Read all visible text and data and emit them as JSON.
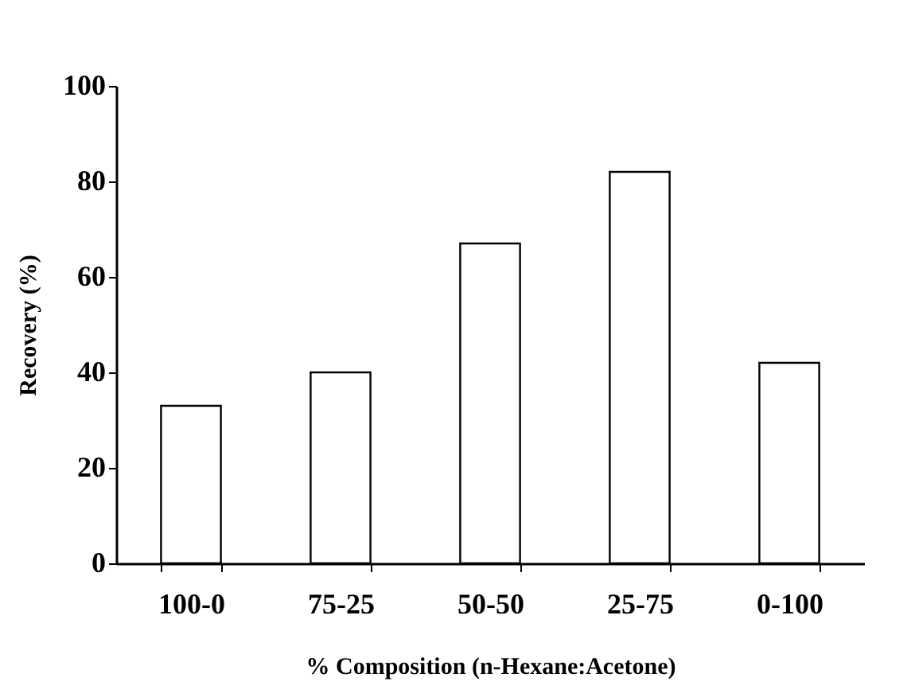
{
  "chart_data": {
    "type": "bar",
    "xlabel": "% Composition (n-Hexane:Acetone)",
    "ylabel": "Recovery (%)",
    "categories": [
      "100-0",
      "75-25",
      "50-50",
      "25-75",
      "0-100"
    ],
    "values": [
      33,
      40,
      67,
      82,
      42
    ],
    "color": "#ffffff",
    "ylim": [
      0,
      100
    ],
    "yticks": [
      0,
      20,
      40,
      60,
      80,
      100
    ],
    "grid": false
  }
}
